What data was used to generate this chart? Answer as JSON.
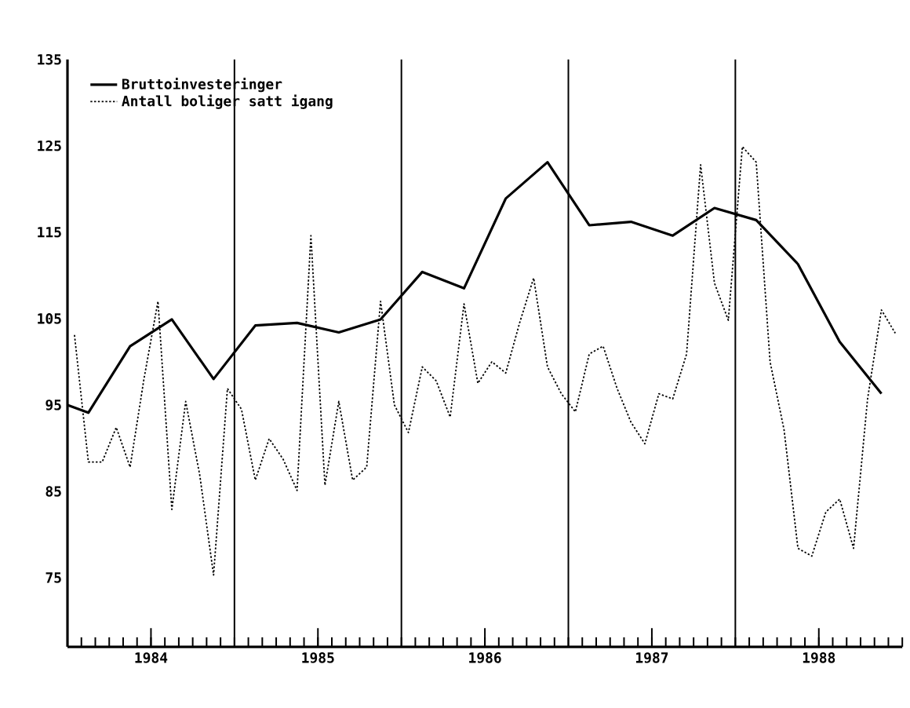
{
  "chart_data": {
    "type": "line",
    "xlim": [
      1984,
      1989
    ],
    "ylim": [
      67,
      135
    ],
    "xticks": [
      {
        "value": 1984.5,
        "label": "1984"
      },
      {
        "value": 1985.5,
        "label": "1985"
      },
      {
        "value": 1986.5,
        "label": "1986"
      },
      {
        "value": 1987.5,
        "label": "1987"
      },
      {
        "value": 1988.5,
        "label": "1988"
      }
    ],
    "yticks": [
      75,
      85,
      95,
      105,
      115,
      125,
      135
    ],
    "grid": false,
    "legend": "top left",
    "marker": "none",
    "ref_lines": [
      {
        "axis": "x",
        "value": 1985,
        "color": "#000000"
      },
      {
        "axis": "x",
        "value": 1986,
        "color": "#000000"
      },
      {
        "axis": "x",
        "value": 1987,
        "color": "#000000"
      },
      {
        "axis": "x",
        "value": 1988,
        "color": "#000000"
      }
    ],
    "series": [
      {
        "name": "Bruttoinvesteringer",
        "color": "#000000",
        "line_style": "solid",
        "x": [
          1984.0,
          1984.125,
          1984.375,
          1984.625,
          1984.875,
          1985.125,
          1985.375,
          1985.625,
          1985.875,
          1986.125,
          1986.375,
          1986.625,
          1986.875,
          1987.125,
          1987.375,
          1987.625,
          1987.875,
          1988.125,
          1988.375,
          1988.625,
          1988.875
        ],
        "values": [
          95.0,
          94.1,
          101.8,
          104.9,
          98.0,
          104.2,
          104.5,
          103.4,
          104.9,
          110.4,
          108.5,
          118.9,
          123.1,
          115.8,
          116.2,
          114.6,
          117.8,
          116.4,
          111.3,
          102.3,
          96.3
        ]
      },
      {
        "name": "Antall boliger satt igang",
        "color": "#000000",
        "line_style": "dotted",
        "x": [
          1984.042,
          1984.125,
          1984.208,
          1984.292,
          1984.375,
          1984.458,
          1984.542,
          1984.625,
          1984.708,
          1984.792,
          1984.875,
          1984.958,
          1985.042,
          1985.125,
          1985.208,
          1985.292,
          1985.375,
          1985.458,
          1985.542,
          1985.625,
          1985.708,
          1985.792,
          1985.875,
          1985.958,
          1986.042,
          1986.125,
          1986.208,
          1986.292,
          1986.375,
          1986.458,
          1986.542,
          1986.625,
          1986.708,
          1986.792,
          1986.875,
          1986.958,
          1987.042,
          1987.125,
          1987.208,
          1987.292,
          1987.375,
          1987.458,
          1987.542,
          1987.625,
          1987.708,
          1987.792,
          1987.875,
          1987.958,
          1988.042,
          1988.125,
          1988.208,
          1988.292,
          1988.375,
          1988.458,
          1988.542,
          1988.625,
          1988.708,
          1988.792,
          1988.875,
          1988.958
        ],
        "values": [
          103.1,
          88.4,
          88.4,
          92.4,
          87.8,
          98.0,
          107.0,
          82.9,
          95.4,
          86.9,
          75.3,
          96.9,
          94.5,
          86.3,
          91.1,
          88.7,
          85.1,
          114.6,
          85.7,
          95.4,
          86.3,
          87.8,
          107.0,
          95.0,
          91.8,
          99.4,
          97.8,
          93.6,
          106.7,
          97.5,
          100.0,
          98.7,
          104.5,
          109.7,
          99.4,
          96.3,
          94.2,
          100.9,
          101.8,
          96.9,
          93.0,
          90.5,
          96.3,
          95.7,
          100.9,
          122.8,
          109.1,
          104.8,
          124.9,
          123.1,
          100.0,
          92.1,
          78.4,
          77.5,
          82.6,
          84.1,
          78.4,
          95.7,
          106.0,
          103.3
        ]
      }
    ]
  }
}
